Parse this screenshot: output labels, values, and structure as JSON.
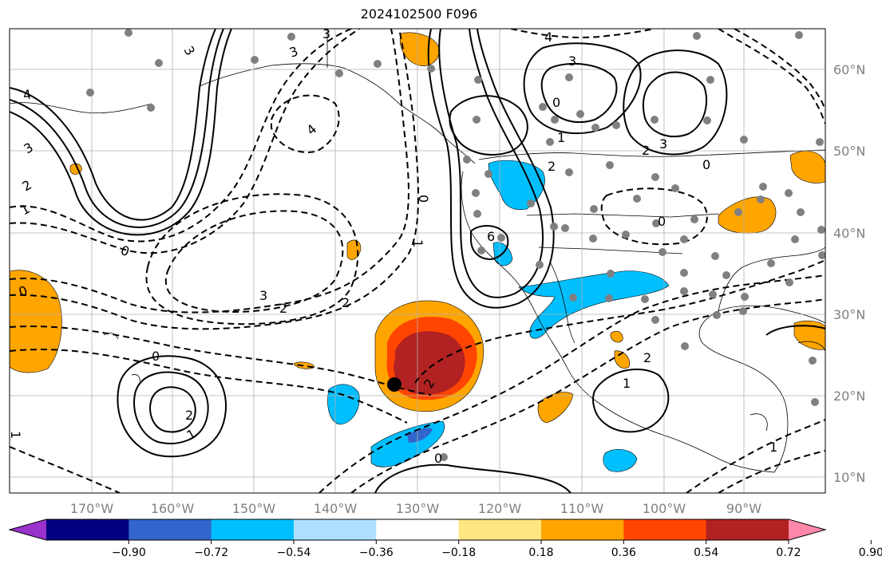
{
  "title": "2024102500 F096",
  "lon_ticks": [
    "170°W",
    "160°W",
    "150°W",
    "140°W",
    "130°W",
    "120°W",
    "110°W",
    "100°W",
    "90°W"
  ],
  "lat_ticks": [
    "60°N",
    "50°N",
    "40°N",
    "30°N",
    "20°N",
    "10°N"
  ],
  "colorbar": {
    "colors": [
      "#9933cc",
      "#000080",
      "#3366cc",
      "#00bfff",
      "#b0e0ff",
      "#ffffff",
      "#ffe680",
      "#ffa500",
      "#ff4500",
      "#b22222",
      "#ff88aa"
    ],
    "tick_labels": [
      "−0.90",
      "−0.72",
      "−0.54",
      "−0.36",
      "−0.18",
      "0.18",
      "0.36",
      "0.54",
      "0.72",
      "0.90"
    ]
  },
  "contour_labels": [
    "4",
    "3",
    "3",
    "3",
    "2",
    "1",
    "0",
    "0",
    "2",
    "1",
    "4",
    "3",
    "2",
    "0",
    "6",
    "0",
    "0",
    "1",
    "2",
    "3",
    "4",
    "1",
    "2",
    "3",
    "0",
    "1",
    "2",
    "3",
    "2",
    "1",
    "0",
    "2",
    "1",
    "0"
  ],
  "marker_colors": {
    "station": "#808080",
    "center": "#000000"
  }
}
